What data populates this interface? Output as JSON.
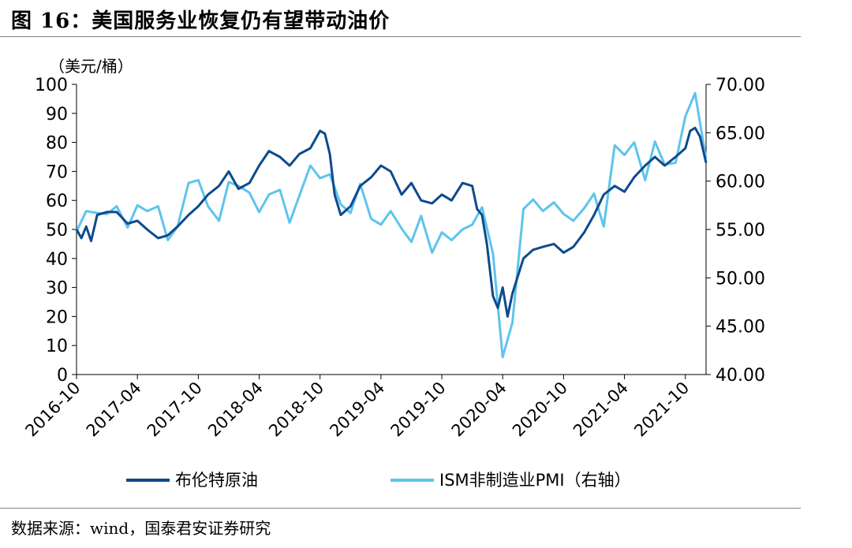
{
  "figure": {
    "title": "图 16：美国服务业恢复仍有望带动油价",
    "source": "数据来源：wind，国泰君安证券研究"
  },
  "chart_data": {
    "type": "line",
    "title": "图 16：美国服务业恢复仍有望带动油价",
    "y_left_unit": "（美元/桶）",
    "y_left_range": [
      0,
      100
    ],
    "y_left_ticks": [
      "0",
      "10",
      "20",
      "30",
      "40",
      "50",
      "60",
      "70",
      "80",
      "90",
      "100"
    ],
    "y_right_range": [
      40,
      70
    ],
    "y_right_ticks": [
      "40.00",
      "45.00",
      "50.00",
      "55.00",
      "60.00",
      "65.00",
      "70.00"
    ],
    "x_range": [
      2016.75,
      2021.92
    ],
    "x_ticks": [
      "2016-10",
      "2017-04",
      "2017-10",
      "2018-04",
      "2018-10",
      "2019-04",
      "2019-10",
      "2020-04",
      "2020-10",
      "2021-04",
      "2021-10"
    ],
    "grid": false,
    "legend_position": "bottom",
    "series": [
      {
        "name": "布伦特原油",
        "axis": "left",
        "color": "#0e4a8c",
        "x": [
          2016.75,
          2016.79,
          2016.83,
          2016.87,
          2016.92,
          2017.0,
          2017.08,
          2017.17,
          2017.25,
          2017.33,
          2017.42,
          2017.5,
          2017.58,
          2017.67,
          2017.75,
          2017.83,
          2017.92,
          2018.0,
          2018.08,
          2018.17,
          2018.25,
          2018.33,
          2018.42,
          2018.5,
          2018.58,
          2018.67,
          2018.75,
          2018.79,
          2018.83,
          2018.87,
          2018.92,
          2019.0,
          2019.08,
          2019.17,
          2019.25,
          2019.33,
          2019.42,
          2019.5,
          2019.58,
          2019.67,
          2019.75,
          2019.83,
          2019.92,
          2020.0,
          2020.04,
          2020.08,
          2020.12,
          2020.17,
          2020.21,
          2020.25,
          2020.29,
          2020.33,
          2020.42,
          2020.5,
          2020.58,
          2020.67,
          2020.75,
          2020.83,
          2020.92,
          2021.0,
          2021.08,
          2021.17,
          2021.25,
          2021.33,
          2021.42,
          2021.5,
          2021.58,
          2021.67,
          2021.75,
          2021.79,
          2021.83,
          2021.87,
          2021.92
        ],
        "values": [
          50,
          47,
          51,
          46,
          55,
          56,
          56,
          52,
          53,
          50,
          47,
          48,
          51,
          55,
          58,
          62,
          65,
          70,
          64,
          66,
          72,
          77,
          75,
          72,
          76,
          78,
          84,
          83,
          76,
          62,
          55,
          58,
          65,
          68,
          72,
          70,
          62,
          66,
          60,
          59,
          62,
          60,
          66,
          65,
          57,
          55,
          45,
          27,
          23,
          30,
          20,
          28,
          40,
          43,
          44,
          45,
          42,
          44,
          49,
          55,
          62,
          65,
          63,
          68,
          72,
          75,
          72,
          75,
          78,
          84,
          85,
          82,
          73
        ]
      },
      {
        "name": "ISM非制造业PMI（右轴）",
        "axis": "right",
        "color": "#5ec4ec",
        "x": [
          2016.75,
          2016.83,
          2016.92,
          2017.0,
          2017.08,
          2017.17,
          2017.25,
          2017.33,
          2017.42,
          2017.5,
          2017.58,
          2017.67,
          2017.75,
          2017.83,
          2017.92,
          2018.0,
          2018.08,
          2018.17,
          2018.25,
          2018.33,
          2018.42,
          2018.5,
          2018.58,
          2018.67,
          2018.75,
          2018.83,
          2018.92,
          2019.0,
          2019.08,
          2019.17,
          2019.25,
          2019.33,
          2019.42,
          2019.5,
          2019.58,
          2019.67,
          2019.75,
          2019.83,
          2019.92,
          2020.0,
          2020.08,
          2020.17,
          2020.25,
          2020.33,
          2020.42,
          2020.5,
          2020.58,
          2020.67,
          2020.75,
          2020.83,
          2020.92,
          2021.0,
          2021.08,
          2021.17,
          2021.25,
          2021.33,
          2021.42,
          2021.5,
          2021.58,
          2021.67,
          2021.75,
          2021.83,
          2021.92
        ],
        "values": [
          54.8,
          56.9,
          56.7,
          56.6,
          57.4,
          55.2,
          57.5,
          56.9,
          57.4,
          53.9,
          55.3,
          59.8,
          60.1,
          57.4,
          55.9,
          59.9,
          59.5,
          58.8,
          56.8,
          58.6,
          59.1,
          55.7,
          58.5,
          61.6,
          60.3,
          60.7,
          57.6,
          56.7,
          59.7,
          56.1,
          55.5,
          56.9,
          55.1,
          53.7,
          56.4,
          52.6,
          54.7,
          53.9,
          55.0,
          55.5,
          57.3,
          52.5,
          41.8,
          45.4,
          57.1,
          58.1,
          56.9,
          57.8,
          56.6,
          55.9,
          57.2,
          58.7,
          55.3,
          63.7,
          62.7,
          64.0,
          60.1,
          64.1,
          61.7,
          61.9,
          66.7,
          69.1,
          62.3
        ]
      }
    ]
  }
}
